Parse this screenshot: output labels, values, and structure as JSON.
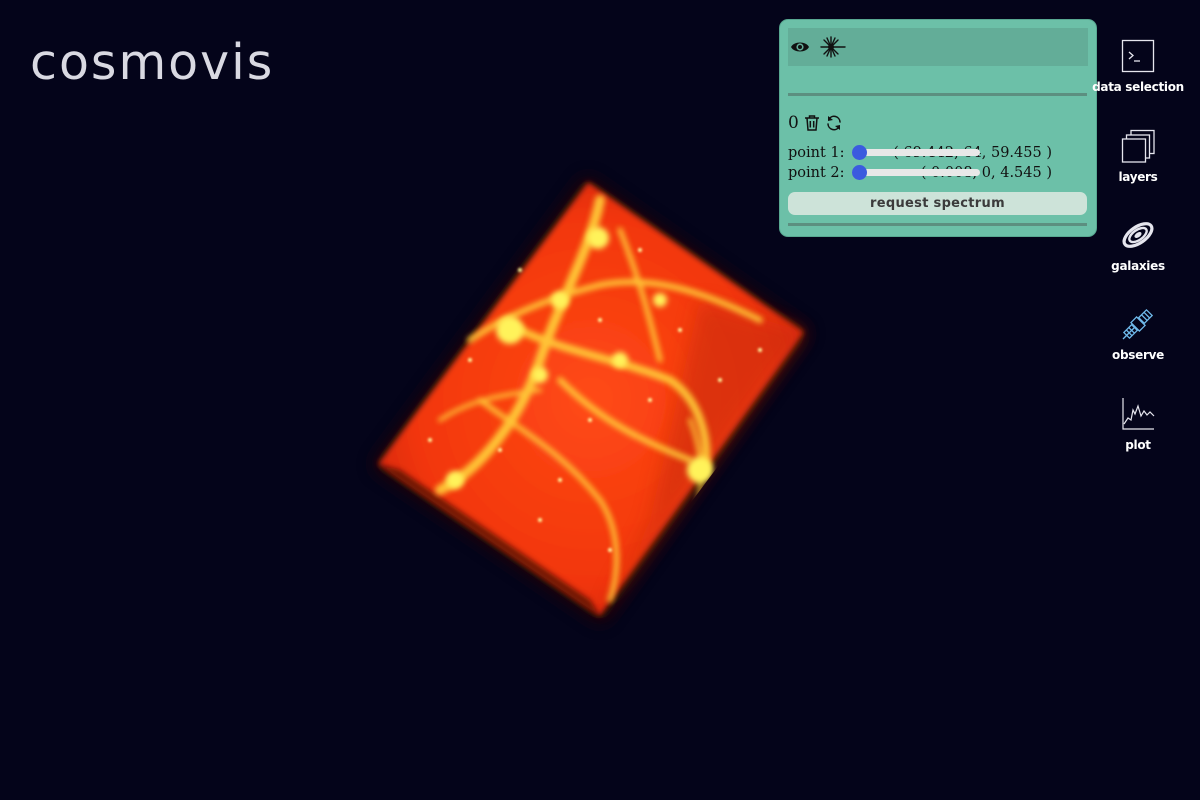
{
  "app": {
    "logo_text": "cosmovis"
  },
  "panel": {
    "icons": [
      "eye-icon",
      "laser-icon"
    ],
    "point_count": "0",
    "point1": {
      "label": "point 1:",
      "value": 0,
      "coords": "( 69.442, 64, 59.455 )"
    },
    "point2": {
      "label": "point 2:",
      "value": 0,
      "coords": "( 0.008, 0, 4.545 )"
    },
    "request_label": "request spectrum"
  },
  "nav": {
    "items": [
      {
        "label": "data selection",
        "icon": "terminal-icon"
      },
      {
        "label": "layers",
        "icon": "layers-icon"
      },
      {
        "label": "galaxies",
        "icon": "galaxy-icon"
      },
      {
        "label": "observe",
        "icon": "satellite-icon"
      },
      {
        "label": "plot",
        "icon": "plot-icon"
      }
    ]
  },
  "colors": {
    "background": "#04041a",
    "panel": "#6cc0a8",
    "slider_knob": "#3b5bdf",
    "skewer_line": "#ff1a8c",
    "volume_core": "#ff3b12",
    "volume_filament": "#ffe94a"
  }
}
